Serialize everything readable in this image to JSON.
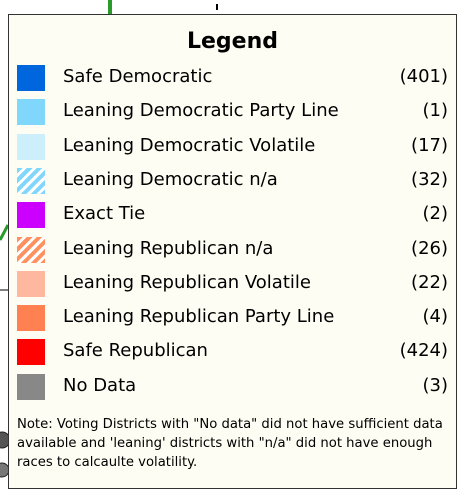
{
  "legend": {
    "title": "Legend",
    "items": [
      {
        "label": "Safe Democratic",
        "count": "(401)",
        "color": "#0066dd",
        "hatched": false
      },
      {
        "label": "Leaning Democratic Party Line",
        "count": "(1)",
        "color": "#80d6fb",
        "hatched": false
      },
      {
        "label": "Leaning Democratic Volatile",
        "count": "(17)",
        "color": "#cdeffb",
        "hatched": false
      },
      {
        "label": "Leaning Democratic n/a",
        "count": "(32)",
        "color": "#80d6fb",
        "hatched": true
      },
      {
        "label": "Exact Tie",
        "count": "(2)",
        "color": "#cc00ff",
        "hatched": false
      },
      {
        "label": "Leaning Republican n/a",
        "count": "(26)",
        "color": "#ff9060",
        "hatched": true
      },
      {
        "label": "Leaning Republican Volatile",
        "count": "(22)",
        "color": "#ffb8a0",
        "hatched": false
      },
      {
        "label": "Leaning Republican Party Line",
        "count": "(4)",
        "color": "#ff8050",
        "hatched": false
      },
      {
        "label": "Safe Republican",
        "count": "(424)",
        "color": "#ff0000",
        "hatched": false
      },
      {
        "label": "No Data",
        "count": "(3)",
        "color": "#888888",
        "hatched": false
      }
    ],
    "note": "Note: Voting Districts with \"No data\" did not have sufficient data available and 'leaning' districts with \"n/a\" did not have enough races to calcaulte volatility."
  }
}
